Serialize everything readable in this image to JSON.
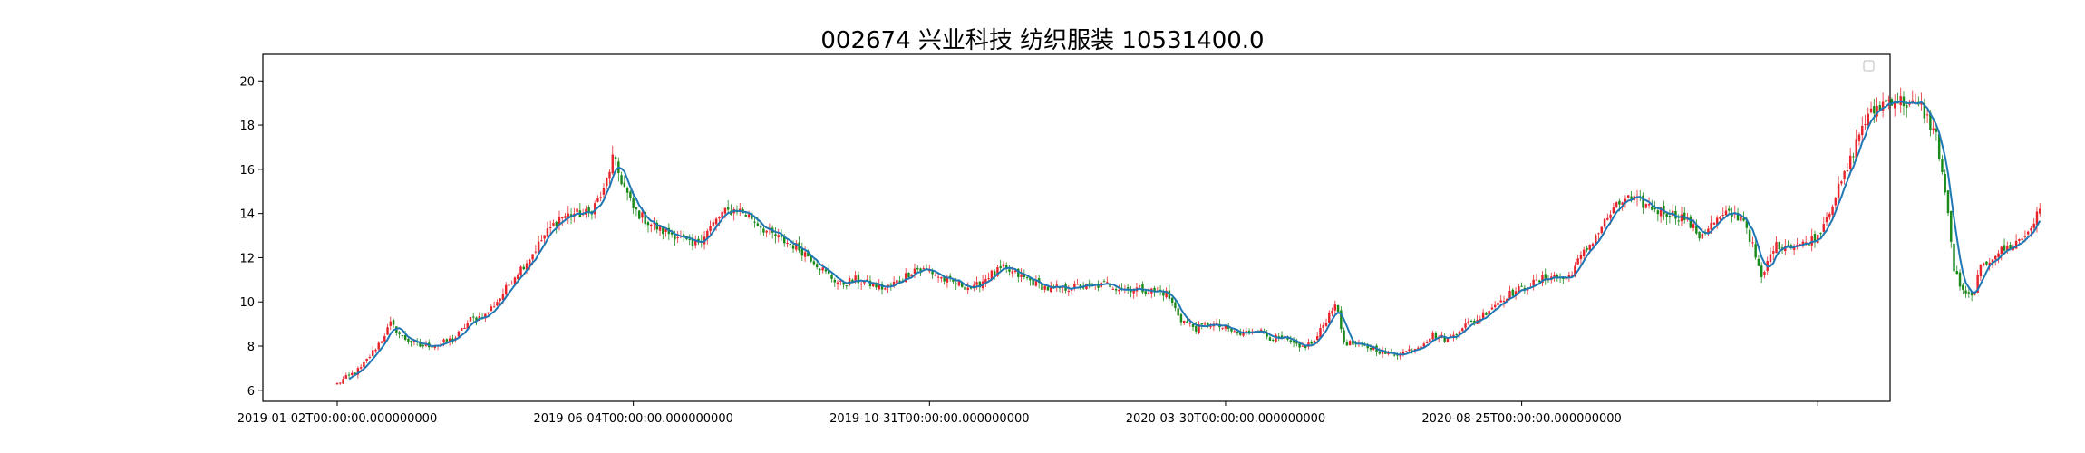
{
  "chart_data": {
    "type": "candlestick",
    "title": "002674 兴业科技 纺织服装 10531400.0",
    "xlabel": "",
    "ylabel": "",
    "ylim": [
      5.5,
      21.2
    ],
    "yticks": [
      6,
      8,
      10,
      12,
      14,
      16,
      18,
      20
    ],
    "ytick_labels": [
      "6",
      "8",
      "10",
      "12",
      "14",
      "16",
      "18",
      "20"
    ],
    "xticks": [
      {
        "label": "2019-01-02T00:00:00.000000000",
        "index": 0
      },
      {
        "label": "2019-06-04T00:00:00.000000000",
        "index": 100
      },
      {
        "label": "2019-10-31T00:00:00.000000000",
        "index": 200
      },
      {
        "label": "2020-03-30T00:00:00.000000000",
        "index": 300
      },
      {
        "label": "2020-08-25T00:00:00.000000000",
        "index": 400
      },
      {
        "label": "",
        "index": 500
      }
    ],
    "series_up_color": "#e8242c",
    "series_down_color": "#1a8a1a",
    "ma_color": "#1f77b4",
    "legend": "top-right (empty)",
    "grid": false,
    "close_keypoints": [
      [
        0,
        6.3
      ],
      [
        8,
        7.0
      ],
      [
        15,
        8.3
      ],
      [
        18,
        9.0
      ],
      [
        22,
        8.4
      ],
      [
        28,
        8.0
      ],
      [
        35,
        8.1
      ],
      [
        40,
        8.4
      ],
      [
        45,
        9.2
      ],
      [
        50,
        9.4
      ],
      [
        55,
        10.2
      ],
      [
        60,
        11.2
      ],
      [
        65,
        12.0
      ],
      [
        70,
        13.0
      ],
      [
        75,
        13.8
      ],
      [
        80,
        14.0
      ],
      [
        85,
        14.0
      ],
      [
        90,
        15.0
      ],
      [
        93,
        16.5
      ],
      [
        96,
        15.5
      ],
      [
        100,
        14.2
      ],
      [
        105,
        13.6
      ],
      [
        110,
        13.2
      ],
      [
        115,
        13.0
      ],
      [
        120,
        12.5
      ],
      [
        125,
        13.2
      ],
      [
        130,
        14.0
      ],
      [
        135,
        14.2
      ],
      [
        140,
        13.8
      ],
      [
        145,
        13.2
      ],
      [
        150,
        12.8
      ],
      [
        155,
        12.5
      ],
      [
        160,
        12.0
      ],
      [
        165,
        11.3
      ],
      [
        170,
        10.8
      ],
      [
        175,
        11.0
      ],
      [
        180,
        10.8
      ],
      [
        185,
        10.6
      ],
      [
        190,
        11.0
      ],
      [
        195,
        11.5
      ],
      [
        200,
        11.4
      ],
      [
        205,
        11.0
      ],
      [
        210,
        10.8
      ],
      [
        215,
        10.6
      ],
      [
        220,
        11.2
      ],
      [
        225,
        11.5
      ],
      [
        230,
        11.2
      ],
      [
        235,
        10.9
      ],
      [
        240,
        10.6
      ],
      [
        245,
        10.6
      ],
      [
        250,
        10.7
      ],
      [
        255,
        10.7
      ],
      [
        260,
        10.8
      ],
      [
        265,
        10.6
      ],
      [
        270,
        10.6
      ],
      [
        275,
        10.5
      ],
      [
        280,
        10.4
      ],
      [
        285,
        9.2
      ],
      [
        290,
        8.8
      ],
      [
        295,
        9.0
      ],
      [
        300,
        8.8
      ],
      [
        305,
        8.5
      ],
      [
        310,
        8.8
      ],
      [
        315,
        8.4
      ],
      [
        320,
        8.3
      ],
      [
        325,
        7.9
      ],
      [
        330,
        8.2
      ],
      [
        334,
        9.2
      ],
      [
        337,
        10.0
      ],
      [
        340,
        8.2
      ],
      [
        345,
        8.0
      ],
      [
        350,
        7.9
      ],
      [
        355,
        7.6
      ],
      [
        360,
        7.7
      ],
      [
        365,
        8.0
      ],
      [
        370,
        8.5
      ],
      [
        375,
        8.3
      ],
      [
        380,
        8.9
      ],
      [
        385,
        9.2
      ],
      [
        390,
        9.8
      ],
      [
        395,
        10.3
      ],
      [
        400,
        10.6
      ],
      [
        405,
        10.9
      ],
      [
        410,
        11.2
      ],
      [
        415,
        11.0
      ],
      [
        420,
        12.0
      ],
      [
        425,
        13.0
      ],
      [
        430,
        14.0
      ],
      [
        435,
        14.7
      ],
      [
        440,
        14.5
      ],
      [
        445,
        14.2
      ],
      [
        450,
        14.0
      ],
      [
        455,
        13.8
      ],
      [
        460,
        13.0
      ],
      [
        465,
        13.6
      ],
      [
        470,
        14.0
      ],
      [
        475,
        13.8
      ],
      [
        478,
        12.5
      ],
      [
        481,
        11.0
      ],
      [
        485,
        12.5
      ],
      [
        490,
        12.6
      ],
      [
        495,
        12.6
      ],
      [
        500,
        13.0
      ],
      [
        505,
        14.5
      ],
      [
        510,
        16.0
      ],
      [
        515,
        18.0
      ],
      [
        520,
        18.8
      ],
      [
        525,
        19.2
      ],
      [
        530,
        19.0
      ],
      [
        535,
        18.8
      ],
      [
        540,
        17.5
      ],
      [
        543,
        15.0
      ],
      [
        546,
        11.5
      ],
      [
        549,
        10.4
      ],
      [
        552,
        10.2
      ],
      [
        555,
        11.5
      ],
      [
        560,
        12.2
      ],
      [
        565,
        12.5
      ],
      [
        570,
        13.0
      ],
      [
        575,
        14.1
      ]
    ]
  }
}
